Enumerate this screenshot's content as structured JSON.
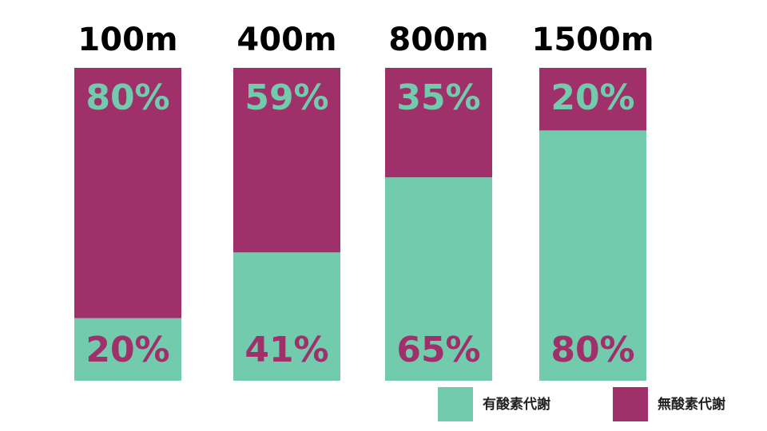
{
  "chart_data": {
    "type": "stacked-bar",
    "categories": [
      "100m",
      "400m",
      "800m",
      "1500m"
    ],
    "series": [
      {
        "name": "有酸素代謝",
        "color": "#72cbad",
        "values": [
          20,
          41,
          65,
          80
        ],
        "value_labels": [
          "20%",
          "41%",
          "65%",
          "80%"
        ]
      },
      {
        "name": "無酸素代謝",
        "color": "#a0306a",
        "values": [
          80,
          59,
          35,
          20
        ],
        "value_labels": [
          "80%",
          "59%",
          "35%",
          "20%"
        ]
      }
    ]
  }
}
